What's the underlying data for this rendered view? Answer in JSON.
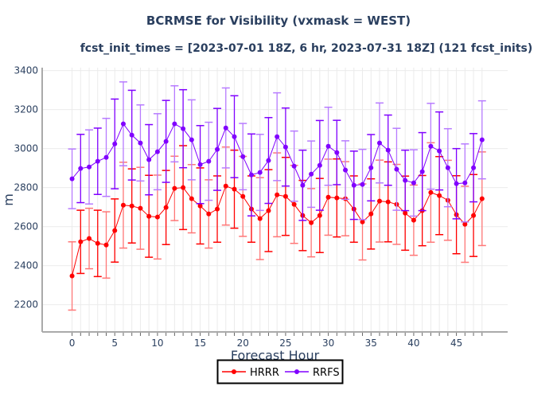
{
  "chart_data": {
    "type": "line",
    "title": "BCRMSE for Visibility (vxmask = WEST)",
    "subtitle": "fcst_init_times = [2023-07-01 18Z, 6 hr, 2023-07-31 18Z] (121 fcst_inits)",
    "xlabel": "Forecast Hour",
    "ylabel": "m",
    "xlim": [
      -3.5,
      51
    ],
    "ylim": [
      2060,
      3415
    ],
    "xticks": [
      0,
      5,
      10,
      15,
      20,
      25,
      30,
      35,
      40,
      45
    ],
    "yticks": [
      2200,
      2400,
      2600,
      2800,
      3000,
      3200,
      3400
    ],
    "grid": true,
    "legend_position": "bottom-center",
    "x": [
      0,
      1,
      2,
      3,
      4,
      5,
      6,
      7,
      8,
      9,
      10,
      11,
      12,
      13,
      14,
      15,
      16,
      17,
      18,
      19,
      20,
      21,
      22,
      23,
      24,
      25,
      26,
      27,
      28,
      29,
      30,
      31,
      32,
      33,
      34,
      35,
      36,
      37,
      38,
      39,
      40,
      41,
      42,
      43,
      44,
      45,
      46,
      47,
      48
    ],
    "series": [
      {
        "name": "HRRR",
        "color": "#ff0000",
        "values": [
          2347,
          2522,
          2539,
          2514,
          2506,
          2580,
          2710,
          2706,
          2694,
          2653,
          2649,
          2698,
          2796,
          2800,
          2743,
          2706,
          2665,
          2690,
          2808,
          2792,
          2755,
          2690,
          2641,
          2682,
          2763,
          2755,
          2714,
          2657,
          2620,
          2657,
          2751,
          2747,
          2743,
          2690,
          2624,
          2665,
          2731,
          2727,
          2714,
          2669,
          2633,
          2682,
          2775,
          2759,
          2735,
          2661,
          2612,
          2657,
          2743
        ],
        "error": [
          175,
          162,
          155,
          170,
          170,
          162,
          220,
          190,
          210,
          210,
          215,
          190,
          165,
          215,
          175,
          195,
          175,
          170,
          200,
          200,
          205,
          170,
          210,
          210,
          215,
          200,
          200,
          180,
          175,
          190,
          195,
          200,
          190,
          170,
          195,
          180,
          210,
          205,
          205,
          190,
          180,
          180,
          255,
          200,
          205,
          200,
          195,
          210,
          240
        ]
      },
      {
        "name": "RRFS",
        "color": "#8000ff",
        "values": [
          2845,
          2898,
          2906,
          2935,
          2955,
          3024,
          3127,
          3069,
          3029,
          2943,
          2984,
          3037,
          3127,
          3102,
          3045,
          2918,
          2935,
          2996,
          3106,
          3061,
          2959,
          2865,
          2878,
          2939,
          3061,
          3008,
          2910,
          2812,
          2869,
          2914,
          3012,
          2980,
          2890,
          2812,
          2816,
          2902,
          3029,
          2992,
          2894,
          2837,
          2824,
          2882,
          3012,
          2988,
          2902,
          2820,
          2824,
          2902,
          3045
        ],
        "error": [
          153,
          175,
          190,
          170,
          200,
          230,
          215,
          230,
          195,
          180,
          195,
          210,
          195,
          200,
          205,
          200,
          200,
          210,
          205,
          210,
          170,
          210,
          195,
          220,
          225,
          200,
          180,
          180,
          170,
          230,
          200,
          165,
          150,
          175,
          180,
          170,
          205,
          180,
          210,
          155,
          170,
          200,
          220,
          200,
          200,
          180,
          200,
          175,
          200
        ]
      }
    ]
  }
}
